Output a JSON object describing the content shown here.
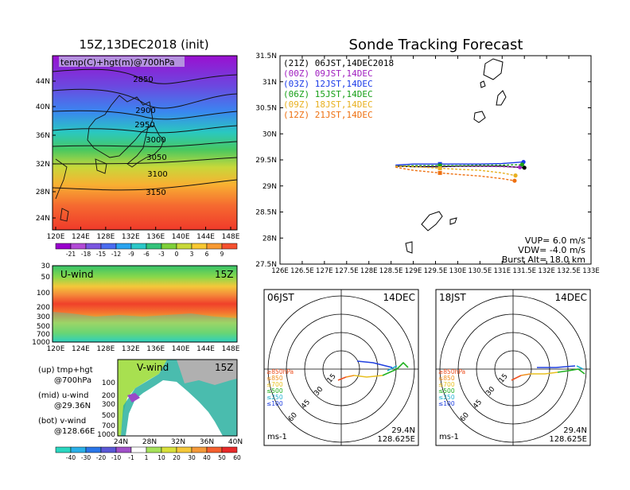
{
  "map_panel": {
    "title": "15Z,13DEC2018 (init)",
    "field_label": "temp(C)+hgt(m)@700hPa",
    "lat_labels": [
      "44N",
      "40N",
      "36N",
      "32N",
      "28N",
      "24N"
    ],
    "lon_labels": [
      "120E",
      "124E",
      "128E",
      "132E",
      "136E",
      "140E",
      "144E",
      "148E"
    ],
    "contour_labels": [
      "2850",
      "2900",
      "2950",
      "3000",
      "3050",
      "3100",
      "3150"
    ],
    "colorbar_labels": [
      "-21",
      "-18",
      "-15",
      "-12",
      "-9",
      "-6",
      "-3",
      "0",
      "3",
      "6",
      "9"
    ],
    "colorbar_colors": [
      "#9900cc",
      "#b24ad6",
      "#7a56e0",
      "#4a6cf0",
      "#2aa4f0",
      "#2cc8c8",
      "#34c37a",
      "#7fd03a",
      "#c8d83a",
      "#f8c832",
      "#f89a32",
      "#f5502f"
    ]
  },
  "uwind_panel": {
    "label": "U-wind",
    "time": "15Z",
    "p_labels": [
      "30",
      "50",
      "100",
      "200",
      "300",
      "500",
      "700",
      "1000"
    ],
    "lon_labels": [
      "120E",
      "124E",
      "128E",
      "132E",
      "136E",
      "140E",
      "144E",
      "148E"
    ]
  },
  "vwind_panel": {
    "label": "V-wind",
    "time": "15Z",
    "p_labels": [
      "100",
      "200",
      "300",
      "500",
      "700",
      "1000"
    ],
    "lat_labels": [
      "24N",
      "28N",
      "32N",
      "36N",
      "40N"
    ]
  },
  "legend_notes": [
    {
      "title": "(up) tmp+hgt",
      "sub": "@700hPa"
    },
    {
      "title": "(mid) u-wind",
      "sub": "@29.36N"
    },
    {
      "title": "(bot) v-wind",
      "sub": "@128.66E"
    }
  ],
  "wind_colorbar": {
    "labels": [
      "-40",
      "-30",
      "-20",
      "-10",
      "-1",
      "1",
      "10",
      "20",
      "30",
      "40",
      "50",
      "60"
    ],
    "colors": [
      "#2bd6c0",
      "#2ab0e8",
      "#2a76e8",
      "#5a58d6",
      "#a050c8",
      "#ffffff",
      "#a6e25a",
      "#d8e03a",
      "#f4c83a",
      "#f49a3a",
      "#f4602f",
      "#e82a2a"
    ]
  },
  "tracking": {
    "title": "Sonde Tracking Forecast",
    "lat_labels": [
      "31.5N",
      "31N",
      "30.5N",
      "30N",
      "29.5N",
      "29N",
      "28.5N",
      "28N",
      "27.5N"
    ],
    "lon_labels": [
      "126E",
      "126.5E",
      "127E",
      "127.5E",
      "128E",
      "128.5E",
      "129E",
      "129.5E",
      "130E",
      "130.5E",
      "131E",
      "131.5E",
      "132E",
      "132.5E",
      "133E"
    ],
    "legend": [
      {
        "text": "(21Z) 06JST,14DEC2018",
        "color": "#000000"
      },
      {
        "text": "(00Z) 09JST,14DEC",
        "color": "#a020c0"
      },
      {
        "text": "(03Z) 12JST,14DEC",
        "color": "#1a3ae8"
      },
      {
        "text": "(06Z) 15JST,14DEC",
        "color": "#18a018"
      },
      {
        "text": "(09Z) 18JST,14DEC",
        "color": "#e8b020"
      },
      {
        "text": "(12Z) 21JST,14DEC",
        "color": "#ee7010"
      }
    ],
    "params": [
      "VUP= 6.0 m/s",
      "VDW= -4.0 m/s",
      "Burst Alt= 18.0 km"
    ]
  },
  "hodographs": [
    {
      "time": "06JST",
      "date": "14DEC",
      "lat": "29.4N",
      "lon": "128.625E",
      "unit": "ms-1",
      "ring_labels": [
        "15",
        "30",
        "45",
        "60"
      ],
      "levels": [
        {
          "text": "≥850hPa",
          "color": "#ee5020"
        },
        {
          "text": "≤850",
          "color": "#f09020"
        },
        {
          "text": "≤700",
          "color": "#e8c020"
        },
        {
          "text": "≤500",
          "color": "#20b020"
        },
        {
          "text": "≤250",
          "color": "#20b0d0"
        },
        {
          "text": "≤100",
          "color": "#2040e0"
        }
      ]
    },
    {
      "time": "18JST",
      "date": "14DEC",
      "lat": "29.4N",
      "lon": "128.625E",
      "unit": "ms-1",
      "ring_labels": [
        "15",
        "30",
        "45",
        "60"
      ],
      "levels": [
        {
          "text": "≥850hPa",
          "color": "#ee5020"
        },
        {
          "text": "≤850",
          "color": "#f09020"
        },
        {
          "text": "≤700",
          "color": "#e8c020"
        },
        {
          "text": "≤500",
          "color": "#20b020"
        },
        {
          "text": "≤250",
          "color": "#20b0d0"
        },
        {
          "text": "≤100",
          "color": "#2040e0"
        }
      ]
    }
  ],
  "chart_data": {
    "type": "line",
    "title": "Sonde Tracking Forecast",
    "xlabel": "",
    "ylabel": "",
    "xlim": [
      126,
      133
    ],
    "ylim": [
      27.5,
      31.5
    ],
    "series": [
      {
        "name": "(21Z) 06JST,14DEC2018",
        "color": "#000000",
        "style": "solid",
        "x": [
          128.6,
          129.0,
          129.6,
          130.0,
          130.5,
          131.0,
          131.5
        ],
        "y": [
          29.38,
          29.37,
          29.37,
          29.38,
          29.38,
          29.38,
          29.35
        ]
      },
      {
        "name": "(00Z) 09JST,14DEC",
        "color": "#a020c0",
        "style": "dashed",
        "x": [
          128.6,
          129.0,
          129.6,
          130.0,
          130.5,
          131.0,
          131.4
        ],
        "y": [
          29.38,
          29.38,
          29.38,
          29.38,
          29.38,
          29.37,
          29.36
        ]
      },
      {
        "name": "(03Z) 12JST,14DEC",
        "color": "#1a3ae8",
        "style": "solid",
        "x": [
          128.6,
          129.0,
          129.6,
          130.0,
          130.5,
          131.0,
          131.48
        ],
        "y": [
          29.4,
          29.42,
          29.42,
          29.42,
          29.42,
          29.43,
          29.46
        ]
      },
      {
        "name": "(06Z) 15JST,14DEC",
        "color": "#18a018",
        "style": "dashed",
        "x": [
          128.6,
          129.0,
          129.6,
          130.0,
          130.5,
          131.0,
          131.45
        ],
        "y": [
          29.38,
          29.39,
          29.39,
          29.39,
          29.4,
          29.4,
          29.41
        ]
      },
      {
        "name": "(09Z) 18JST,14DEC",
        "color": "#e8b020",
        "style": "dashed",
        "x": [
          128.6,
          129.0,
          129.6,
          130.0,
          130.5,
          131.0,
          131.3
        ],
        "y": [
          29.38,
          29.37,
          29.34,
          29.32,
          29.3,
          29.25,
          29.2
        ]
      },
      {
        "name": "(12Z) 21JST,14DEC",
        "color": "#ee7010",
        "style": "dashed",
        "x": [
          128.6,
          129.0,
          129.6,
          130.0,
          130.5,
          131.0,
          131.28
        ],
        "y": [
          29.36,
          29.3,
          29.25,
          29.22,
          29.19,
          29.14,
          29.1
        ]
      }
    ]
  }
}
